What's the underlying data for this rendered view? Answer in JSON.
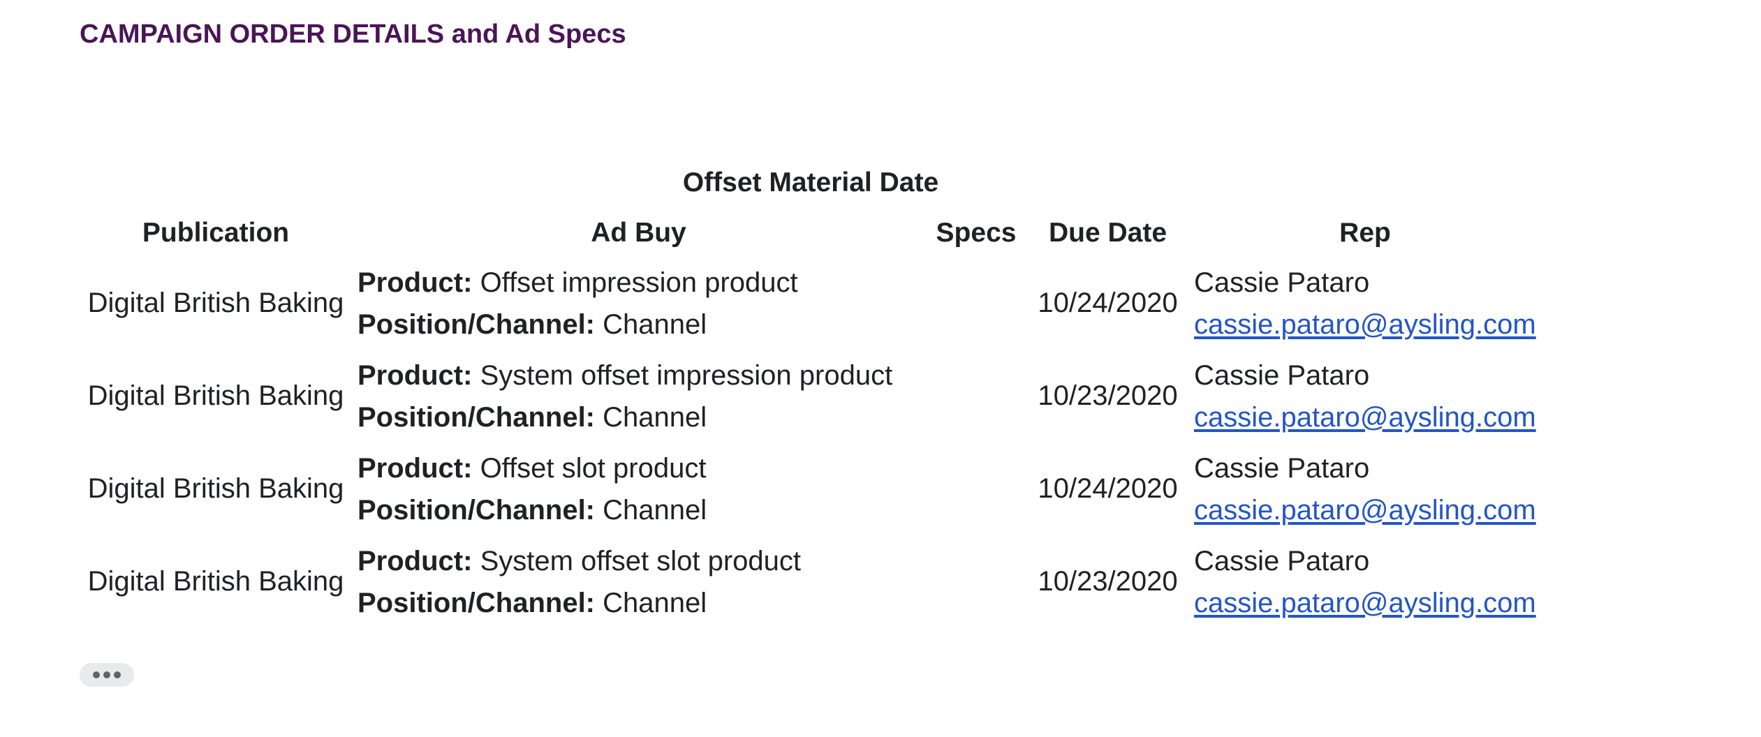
{
  "page": {
    "heading": "CAMPAIGN ORDER DETAILS and Ad Specs"
  },
  "section": {
    "title": "Offset Material Date"
  },
  "table": {
    "headers": {
      "publication": "Publication",
      "ad_buy": "Ad Buy",
      "specs": "Specs",
      "due_date": "Due Date",
      "rep": "Rep"
    },
    "rows": [
      {
        "publication": "Digital British Baking",
        "product_label": "Product:",
        "product": "Offset impression product",
        "position_label": "Position/Channel:",
        "position": "Channel",
        "specs": "",
        "due_date": "10/24/2020",
        "rep_name": "Cassie Pataro",
        "rep_email": "cassie.pataro@aysling.com"
      },
      {
        "publication": "Digital British Baking",
        "product_label": "Product:",
        "product": "System offset impression product",
        "position_label": "Position/Channel:",
        "position": "Channel",
        "specs": "",
        "due_date": "10/23/2020",
        "rep_name": "Cassie Pataro",
        "rep_email": "cassie.pataro@aysling.com"
      },
      {
        "publication": "Digital British Baking",
        "product_label": "Product:",
        "product": "Offset slot product",
        "position_label": "Position/Channel:",
        "position": "Channel",
        "specs": "",
        "due_date": "10/24/2020",
        "rep_name": "Cassie Pataro",
        "rep_email": "cassie.pataro@aysling.com"
      },
      {
        "publication": "Digital British Baking",
        "product_label": "Product:",
        "product": "System offset slot product",
        "position_label": "Position/Channel:",
        "position": "Channel",
        "specs": "",
        "due_date": "10/23/2020",
        "rep_name": "Cassie Pataro",
        "rep_email": "cassie.pataro@aysling.com"
      }
    ]
  },
  "more_button": {
    "icon": "more-horizontal-icon"
  },
  "colors": {
    "heading": "#4a1557",
    "link": "#2355c5",
    "text": "#202124",
    "more_button_bg": "#e8eaed"
  }
}
